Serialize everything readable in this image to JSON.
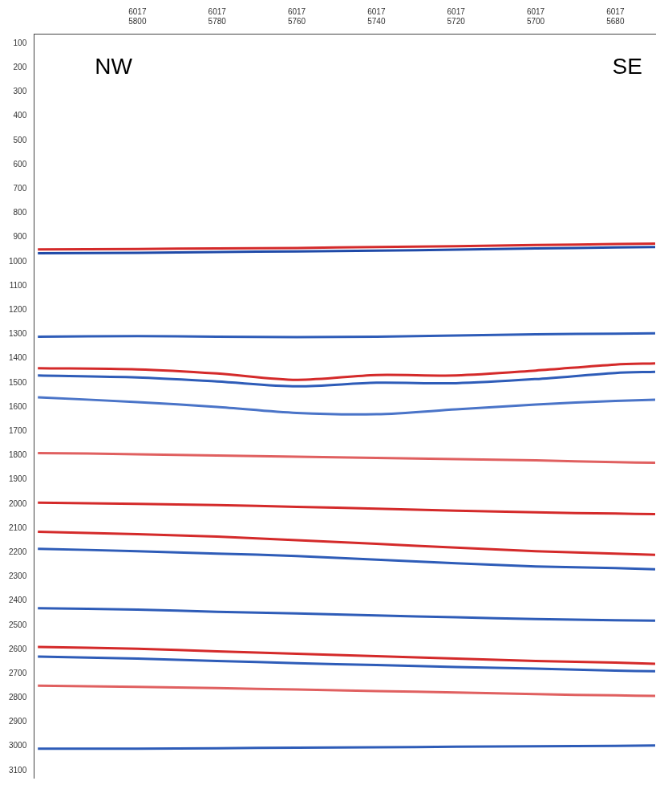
{
  "chart_data": {
    "type": "line",
    "x": [
      5825,
      5800,
      5780,
      5760,
      5740,
      5720,
      5700,
      5680,
      5670
    ],
    "xlim": [
      5826,
      5670
    ],
    "xticks": [
      {
        "value": 5800,
        "label": [
          "6017",
          "5800"
        ]
      },
      {
        "value": 5780,
        "label": [
          "6017",
          "5780"
        ]
      },
      {
        "value": 5760,
        "label": [
          "6017",
          "5760"
        ]
      },
      {
        "value": 5740,
        "label": [
          "6017",
          "5740"
        ]
      },
      {
        "value": 5720,
        "label": [
          "6017",
          "5720"
        ]
      },
      {
        "value": 5700,
        "label": [
          "6017",
          "5700"
        ]
      },
      {
        "value": 5680,
        "label": [
          "6017",
          "5680"
        ]
      }
    ],
    "ylim": [
      60,
      3130
    ],
    "yticks": [
      100,
      200,
      300,
      400,
      500,
      600,
      700,
      800,
      900,
      1000,
      1100,
      1200,
      1300,
      1400,
      1500,
      1600,
      1700,
      1800,
      1900,
      2000,
      2100,
      2200,
      2300,
      2400,
      2500,
      2600,
      2700,
      2800,
      2900,
      3000,
      3100
    ],
    "grid": false,
    "annotations": [
      {
        "text": "NW",
        "x": 5806,
        "y": 200
      },
      {
        "text": "SE",
        "x": 5677,
        "y": 200
      }
    ],
    "series": [
      {
        "color": "#d42a2a",
        "values": [
          950,
          948,
          946,
          944,
          940,
          937,
          932,
          928,
          926
        ]
      },
      {
        "color": "#1f4aa8",
        "values": [
          966,
          964,
          961,
          958,
          955,
          951,
          946,
          942,
          940
        ]
      },
      {
        "color": "#2e5cb8",
        "values": [
          1310,
          1308,
          1310,
          1312,
          1310,
          1305,
          1300,
          1298,
          1296
        ]
      },
      {
        "color": "#d42a2a",
        "values": [
          1440,
          1445,
          1462,
          1488,
          1468,
          1470,
          1450,
          1425,
          1420
        ]
      },
      {
        "color": "#2e5cb8",
        "values": [
          1470,
          1478,
          1495,
          1515,
          1500,
          1502,
          1485,
          1460,
          1455
        ]
      },
      {
        "color": "#4a74c8",
        "values": [
          1560,
          1580,
          1600,
          1625,
          1630,
          1610,
          1590,
          1575,
          1570
        ]
      },
      {
        "color": "#e06060",
        "values": [
          1790,
          1795,
          1800,
          1805,
          1810,
          1815,
          1820,
          1828,
          1830
        ]
      },
      {
        "color": "#d42a2a",
        "values": [
          1995,
          2000,
          2005,
          2012,
          2020,
          2028,
          2035,
          2040,
          2042
        ]
      },
      {
        "color": "#d42a2a",
        "values": [
          2115,
          2125,
          2135,
          2150,
          2165,
          2180,
          2195,
          2205,
          2210
        ]
      },
      {
        "color": "#2e5cb8",
        "values": [
          2185,
          2195,
          2205,
          2215,
          2230,
          2245,
          2258,
          2265,
          2270
        ]
      },
      {
        "color": "#2e5cb8",
        "values": [
          2430,
          2436,
          2445,
          2452,
          2460,
          2468,
          2475,
          2480,
          2482
        ]
      },
      {
        "color": "#d42a2a",
        "values": [
          2590,
          2598,
          2608,
          2618,
          2628,
          2638,
          2648,
          2655,
          2660
        ]
      },
      {
        "color": "#2e5cb8",
        "values": [
          2630,
          2638,
          2648,
          2657,
          2665,
          2673,
          2680,
          2688,
          2690
        ]
      },
      {
        "color": "#e06060",
        "values": [
          2750,
          2755,
          2760,
          2766,
          2772,
          2778,
          2785,
          2790,
          2792
        ]
      },
      {
        "color": "#2e5cb8",
        "values": [
          3010,
          3010,
          3008,
          3006,
          3004,
          3002,
          3000,
          2998,
          2997
        ]
      }
    ]
  }
}
